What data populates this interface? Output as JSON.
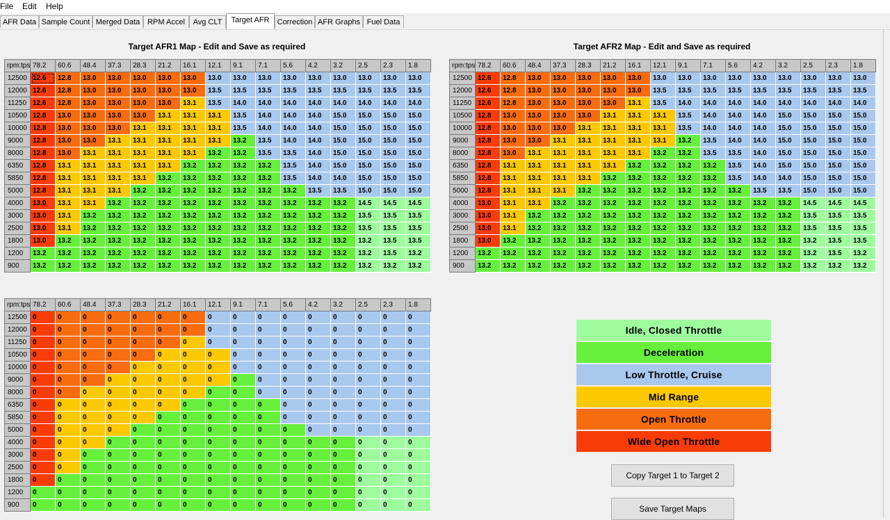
{
  "menu": [
    "File",
    "Edit",
    "Help"
  ],
  "tabs": [
    "AFR Data",
    "Sample Count",
    "Merged Data",
    "RPM Accel",
    "Avg CLT",
    "Target AFR",
    "Correction",
    "AFR Graphs",
    "Fuel Data"
  ],
  "active_tab": 5,
  "corner_label": "rpm:tps",
  "tps": [
    "78.2",
    "60.6",
    "48.4",
    "37.3",
    "28.3",
    "21.2",
    "16.1",
    "12.1",
    "9.1",
    "7.1",
    "5.6",
    "4.2",
    "3.2",
    "2.5",
    "2.3",
    "1.8"
  ],
  "rpm": [
    "12500",
    "12000",
    "11250",
    "10500",
    "10000",
    "9000",
    "8000",
    "6350",
    "5850",
    "5000",
    "4000",
    "3000",
    "2500",
    "1800",
    "1200",
    "900"
  ],
  "afr1": {
    "title": "Target AFR1 Map - Edit and Save as required",
    "values": [
      [
        "12.6",
        "12.8",
        "13.0",
        "13.0",
        "13.0",
        "13.0",
        "13.0",
        "13.0",
        "13.0",
        "13.0",
        "13.0",
        "13.0",
        "13.0",
        "13.0",
        "13.0",
        "13.0"
      ],
      [
        "12.6",
        "12.8",
        "13.0",
        "13.0",
        "13.0",
        "13.0",
        "13.0",
        "13.5",
        "13.5",
        "13.5",
        "13.5",
        "13.5",
        "13.5",
        "13.5",
        "13.5",
        "13.5"
      ],
      [
        "12.6",
        "12.8",
        "13.0",
        "13.0",
        "13.0",
        "13.0",
        "13.1",
        "13.5",
        "14.0",
        "14.0",
        "14.0",
        "14.0",
        "14.0",
        "14.0",
        "14.0",
        "14.0"
      ],
      [
        "12.8",
        "13.0",
        "13.0",
        "13.0",
        "13.0",
        "13.1",
        "13.1",
        "13.1",
        "13.5",
        "14.0",
        "14.0",
        "14.0",
        "15.0",
        "15.0",
        "15.0",
        "15.0"
      ],
      [
        "12.8",
        "13.0",
        "13.0",
        "13.0",
        "13.1",
        "13.1",
        "13.1",
        "13.1",
        "13.5",
        "14.0",
        "14.0",
        "14.0",
        "15.0",
        "15.0",
        "15.0",
        "15.0"
      ],
      [
        "12.8",
        "13.0",
        "13.0",
        "13.1",
        "13.1",
        "13.1",
        "13.1",
        "13.1",
        "13.2",
        "13.5",
        "14.0",
        "14.0",
        "15.0",
        "15.0",
        "15.0",
        "15.0"
      ],
      [
        "12.8",
        "13.0",
        "13.1",
        "13.1",
        "13.1",
        "13.1",
        "13.1",
        "13.2",
        "13.2",
        "13.5",
        "13.5",
        "14.0",
        "15.0",
        "15.0",
        "15.0",
        "15.0"
      ],
      [
        "12.8",
        "13.1",
        "13.1",
        "13.1",
        "13.1",
        "13.1",
        "13.2",
        "13.2",
        "13.2",
        "13.2",
        "13.5",
        "14.0",
        "15.0",
        "15.0",
        "15.0",
        "15.0"
      ],
      [
        "12.8",
        "13.1",
        "13.1",
        "13.1",
        "13.1",
        "13.2",
        "13.2",
        "13.2",
        "13.2",
        "13.2",
        "13.5",
        "14.0",
        "14.0",
        "15.0",
        "15.0",
        "15.0"
      ],
      [
        "12.8",
        "13.1",
        "13.1",
        "13.1",
        "13.2",
        "13.2",
        "13.2",
        "13.2",
        "13.2",
        "13.2",
        "13.2",
        "13.5",
        "13.5",
        "15.0",
        "15.0",
        "15.0"
      ],
      [
        "13.0",
        "13.1",
        "13.1",
        "13.2",
        "13.2",
        "13.2",
        "13.2",
        "13.2",
        "13.2",
        "13.2",
        "13.2",
        "13.2",
        "13.2",
        "14.5",
        "14.5",
        "14.5"
      ],
      [
        "13.0",
        "13.1",
        "13.2",
        "13.2",
        "13.2",
        "13.2",
        "13.2",
        "13.2",
        "13.2",
        "13.2",
        "13.2",
        "13.2",
        "13.2",
        "13.5",
        "13.5",
        "13.5"
      ],
      [
        "13.0",
        "13.1",
        "13.2",
        "13.2",
        "13.2",
        "13.2",
        "13.2",
        "13.2",
        "13.2",
        "13.2",
        "13.2",
        "13.2",
        "13.2",
        "13.5",
        "13.5",
        "13.5"
      ],
      [
        "13.0",
        "13.2",
        "13.2",
        "13.2",
        "13.2",
        "13.2",
        "13.2",
        "13.2",
        "13.2",
        "13.2",
        "13.2",
        "13.2",
        "13.2",
        "13.2",
        "13.5",
        "13.5"
      ],
      [
        "13.2",
        "13.2",
        "13.2",
        "13.2",
        "13.2",
        "13.2",
        "13.2",
        "13.2",
        "13.2",
        "13.2",
        "13.2",
        "13.2",
        "13.2",
        "13.2",
        "13.5",
        "13.2"
      ],
      [
        "13.2",
        "13.2",
        "13.2",
        "13.2",
        "13.2",
        "13.2",
        "13.2",
        "13.2",
        "13.2",
        "13.2",
        "13.2",
        "13.2",
        "13.2",
        "13.2",
        "13.2",
        "13.2"
      ]
    ]
  },
  "afr2": {
    "title": "Target AFR2 Map - Edit and Save as required",
    "values": [
      [
        "12.6",
        "12.8",
        "13.0",
        "13.0",
        "13.0",
        "13.0",
        "13.0",
        "13.0",
        "13.0",
        "13.0",
        "13.0",
        "13.0",
        "13.0",
        "13.0",
        "13.0",
        "13.0"
      ],
      [
        "12.6",
        "12.8",
        "13.0",
        "13.0",
        "13.0",
        "13.0",
        "13.0",
        "13.5",
        "13.5",
        "13.5",
        "13.5",
        "13.5",
        "13.5",
        "13.5",
        "13.5",
        "13.5"
      ],
      [
        "12.6",
        "12.8",
        "13.0",
        "13.0",
        "13.0",
        "13.0",
        "13.1",
        "13.5",
        "14.0",
        "14.0",
        "14.0",
        "14.0",
        "14.0",
        "14.0",
        "14.0",
        "14.0"
      ],
      [
        "12.8",
        "13.0",
        "13.0",
        "13.0",
        "13.0",
        "13.1",
        "13.1",
        "13.1",
        "13.5",
        "14.0",
        "14.0",
        "14.0",
        "15.0",
        "15.0",
        "15.0",
        "15.0"
      ],
      [
        "12.8",
        "13.0",
        "13.0",
        "13.0",
        "13.1",
        "13.1",
        "13.1",
        "13.1",
        "13.5",
        "14.0",
        "14.0",
        "14.0",
        "15.0",
        "15.0",
        "15.0",
        "15.0"
      ],
      [
        "12.8",
        "13.0",
        "13.0",
        "13.1",
        "13.1",
        "13.1",
        "13.1",
        "13.1",
        "13.2",
        "13.5",
        "14.0",
        "14.0",
        "15.0",
        "15.0",
        "15.0",
        "15.0"
      ],
      [
        "12.8",
        "13.0",
        "13.1",
        "13.1",
        "13.1",
        "13.1",
        "13.1",
        "13.2",
        "13.2",
        "13.5",
        "13.5",
        "14.0",
        "15.0",
        "15.0",
        "15.0",
        "15.0"
      ],
      [
        "12.8",
        "13.1",
        "13.1",
        "13.1",
        "13.1",
        "13.1",
        "13.2",
        "13.2",
        "13.2",
        "13.2",
        "13.5",
        "14.0",
        "15.0",
        "15.0",
        "15.0",
        "15.0"
      ],
      [
        "12.8",
        "13.1",
        "13.1",
        "13.1",
        "13.1",
        "13.2",
        "13.2",
        "13.2",
        "13.2",
        "13.2",
        "13.5",
        "14.0",
        "14.0",
        "15.0",
        "15.0",
        "15.0"
      ],
      [
        "12.8",
        "13.1",
        "13.1",
        "13.1",
        "13.2",
        "13.2",
        "13.2",
        "13.2",
        "13.2",
        "13.2",
        "13.2",
        "13.5",
        "13.5",
        "15.0",
        "15.0",
        "15.0"
      ],
      [
        "13.0",
        "13.1",
        "13.1",
        "13.2",
        "13.2",
        "13.2",
        "13.2",
        "13.2",
        "13.2",
        "13.2",
        "13.2",
        "13.2",
        "13.2",
        "14.5",
        "14.5",
        "14.5"
      ],
      [
        "13.0",
        "13.1",
        "13.2",
        "13.2",
        "13.2",
        "13.2",
        "13.2",
        "13.2",
        "13.2",
        "13.2",
        "13.2",
        "13.2",
        "13.2",
        "13.5",
        "13.5",
        "13.5"
      ],
      [
        "13.0",
        "13.1",
        "13.2",
        "13.2",
        "13.2",
        "13.2",
        "13.2",
        "13.2",
        "13.2",
        "13.2",
        "13.2",
        "13.2",
        "13.2",
        "13.5",
        "13.5",
        "13.5"
      ],
      [
        "13.0",
        "13.2",
        "13.2",
        "13.2",
        "13.2",
        "13.2",
        "13.2",
        "13.2",
        "13.2",
        "13.2",
        "13.2",
        "13.2",
        "13.2",
        "13.2",
        "13.5",
        "13.5"
      ],
      [
        "13.2",
        "13.2",
        "13.2",
        "13.2",
        "13.2",
        "13.2",
        "13.2",
        "13.2",
        "13.2",
        "13.2",
        "13.2",
        "13.2",
        "13.2",
        "13.2",
        "13.5",
        "13.2"
      ],
      [
        "13.2",
        "13.2",
        "13.2",
        "13.2",
        "13.2",
        "13.2",
        "13.2",
        "13.2",
        "13.2",
        "13.2",
        "13.2",
        "13.2",
        "13.2",
        "13.2",
        "13.2",
        "13.2"
      ]
    ]
  },
  "zones": [
    [
      5,
      4,
      4,
      4,
      4,
      4,
      4,
      2,
      2,
      2,
      2,
      2,
      2,
      2,
      2,
      2
    ],
    [
      5,
      4,
      4,
      4,
      4,
      4,
      4,
      2,
      2,
      2,
      2,
      2,
      2,
      2,
      2,
      2
    ],
    [
      5,
      4,
      4,
      4,
      4,
      4,
      3,
      2,
      2,
      2,
      2,
      2,
      2,
      2,
      2,
      2
    ],
    [
      5,
      4,
      4,
      4,
      4,
      3,
      3,
      3,
      2,
      2,
      2,
      2,
      2,
      2,
      2,
      2
    ],
    [
      5,
      4,
      4,
      4,
      3,
      3,
      3,
      3,
      2,
      2,
      2,
      2,
      2,
      2,
      2,
      2
    ],
    [
      5,
      4,
      4,
      3,
      3,
      3,
      3,
      3,
      1,
      2,
      2,
      2,
      2,
      2,
      2,
      2
    ],
    [
      5,
      4,
      3,
      3,
      3,
      3,
      3,
      1,
      1,
      2,
      2,
      2,
      2,
      2,
      2,
      2
    ],
    [
      5,
      3,
      3,
      3,
      3,
      3,
      1,
      1,
      1,
      1,
      2,
      2,
      2,
      2,
      2,
      2
    ],
    [
      5,
      3,
      3,
      3,
      3,
      1,
      1,
      1,
      1,
      1,
      2,
      2,
      2,
      2,
      2,
      2
    ],
    [
      5,
      3,
      3,
      3,
      1,
      1,
      1,
      1,
      1,
      1,
      1,
      2,
      2,
      2,
      2,
      2
    ],
    [
      5,
      3,
      3,
      1,
      1,
      1,
      1,
      1,
      1,
      1,
      1,
      1,
      1,
      0,
      0,
      0
    ],
    [
      5,
      3,
      1,
      1,
      1,
      1,
      1,
      1,
      1,
      1,
      1,
      1,
      1,
      0,
      0,
      0
    ],
    [
      5,
      3,
      1,
      1,
      1,
      1,
      1,
      1,
      1,
      1,
      1,
      1,
      1,
      0,
      0,
      0
    ],
    [
      5,
      1,
      1,
      1,
      1,
      1,
      1,
      1,
      1,
      1,
      1,
      1,
      1,
      0,
      0,
      0
    ],
    [
      1,
      1,
      1,
      1,
      1,
      1,
      1,
      1,
      1,
      1,
      1,
      1,
      1,
      0,
      0,
      0
    ],
    [
      1,
      1,
      1,
      1,
      1,
      1,
      1,
      1,
      1,
      1,
      1,
      1,
      1,
      0,
      0,
      0
    ]
  ],
  "lower_map_value": "0",
  "legend": [
    {
      "label": "Idle, Closed Throttle",
      "color": "#9efc9e"
    },
    {
      "label": "Deceleration",
      "color": "#66f03c"
    },
    {
      "label": "Low Throttle, Cruise",
      "color": "#a8c8ee"
    },
    {
      "label": "Mid Range",
      "color": "#fcc800"
    },
    {
      "label": "Open Throttle",
      "color": "#f86c10"
    },
    {
      "label": "Wide Open Throttle",
      "color": "#f83c08"
    }
  ],
  "buttons": {
    "copy_label": "Copy Target 1 to Target 2",
    "save_label": "Save Target Maps"
  }
}
